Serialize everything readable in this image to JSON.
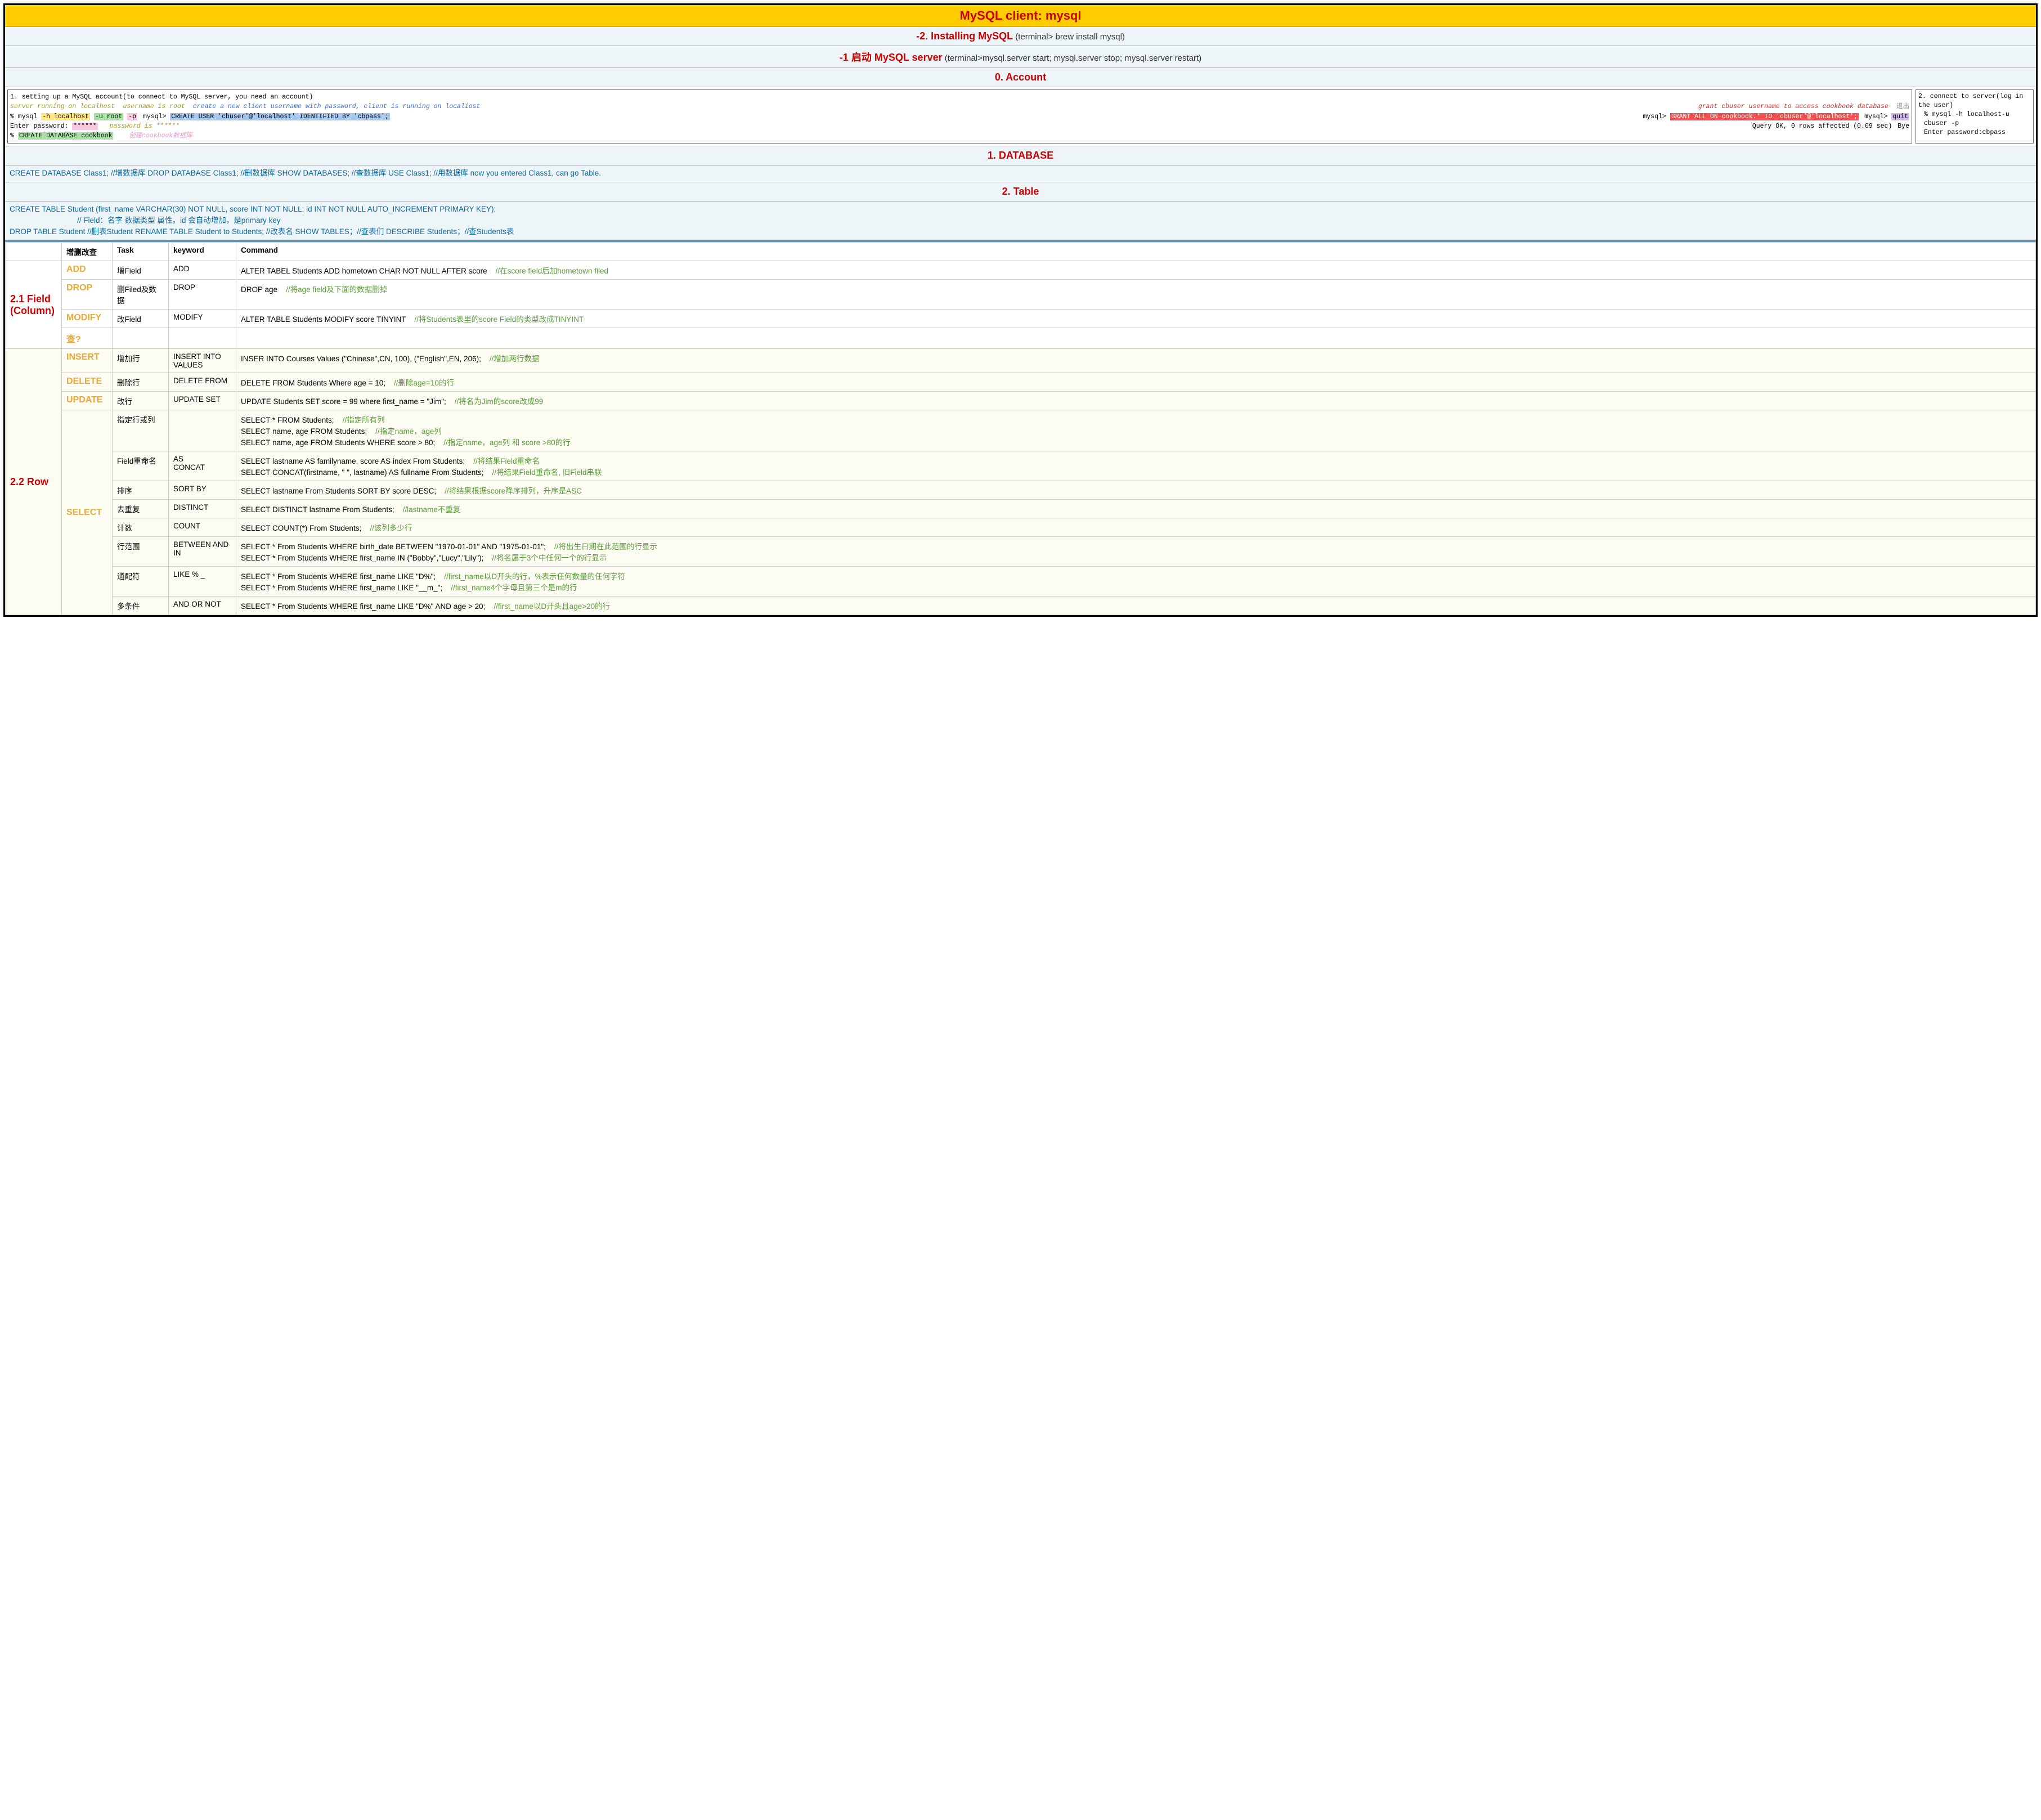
{
  "title": "MySQL client: mysql",
  "sections": {
    "install": {
      "heading": "-2. Installing MySQL",
      "sub": "(terminal> brew install mysql)"
    },
    "start": {
      "heading": "-1 启动 MySQL server",
      "sub": "(terminal>mysql.server start; mysql.server stop; mysql.server restart)"
    },
    "account": {
      "heading": "0. Account"
    },
    "database": {
      "heading": "1. DATABASE"
    },
    "table": {
      "heading": "2. Table"
    }
  },
  "account_left": {
    "l1": "1. setting up a MySQL account(to connect to MySQL server, you need an account)",
    "olive1": "server running on localhost",
    "olive2": "username is root",
    "blue_i": "create a new client username with password,  client is running on localiost",
    "red_i": "grant cbuser username to access cookbook database",
    "exit": "退出",
    "p_mysql": "% mysql ",
    "hl_host": "-h localhost",
    "hl_user": "-u root",
    "hl_p": "-p",
    "mysqlp": "mysql> ",
    "create_user": "CREATE USER 'cbuser'@'localhost' IDENTIFIED BY 'cbpass';",
    "grant": "GRANT ALL ON cookbook.* TO 'cbuser'@'localhost';",
    "quit": "quit",
    "enter_pw": "Enter password: ",
    "stars": "******",
    "pw_is": "password is ",
    "query_ok": "Query OK, 0 rows affected (0.09 sec)",
    "bye": "Bye",
    "create_db_p": "% ",
    "create_db": "CREATE DATABASE cookbook",
    "create_db_note": "创建cookbook数据库"
  },
  "account_right": {
    "l1": "2. connect to server(log in the user)",
    "l2": "% mysql -h localhost-u cbuser -p",
    "l3": "Enter password:cbpass"
  },
  "database_block": "CREATE DATABASE Class1; //增数据库  DROP DATABASE Class1; //删数据库 SHOW DATABASES; //查数据库   USE Class1; //用数据库 now you entered Class1, can go Table.",
  "table_block": {
    "l1": "CREATE TABLE Student (first_name VARCHAR(30) NOT NULL,  score INT NOT NULL,  id INT NOT NULL AUTO_INCREMENT PRIMARY KEY);",
    "l2": "//     Field：名字 数据类型          属性。id 会自动增加，是primary key",
    "l3": "DROP TABLE Student  //删表Student RENAME TABLE Student to Students;  //改表名 SHOW TABLES；//查表们  DESCRIBE Students；//查Students表"
  },
  "columns": [
    "",
    "增删改查",
    "Task",
    "keyword",
    "Command"
  ],
  "field_section": {
    "title": "2.1 Field (Column)",
    "rows": [
      {
        "op": "ADD",
        "task": "增Field",
        "kw": "ADD",
        "cmd": "ALTER TABEL Students ADD hometown CHAR NOT NULL AFTER score",
        "note": "//在score field后加hometown filed"
      },
      {
        "op": "DROP",
        "task": "删Filed及数据",
        "kw": "DROP",
        "cmd": "DROP age",
        "note": "//将age field及下面的数据删掉"
      },
      {
        "op": "MODIFY",
        "task": "改Field",
        "kw": "MODIFY",
        "cmd": "ALTER TABLE Students MODIFY score TINYINT",
        "note": "//将Students表里的score Field的类型改成TINYINT"
      },
      {
        "op": "查?",
        "task": "",
        "kw": "",
        "cmd": "",
        "note": ""
      }
    ]
  },
  "row_section": {
    "title": "2.2 Row",
    "rows_simple": [
      {
        "op": "INSERT",
        "task": "增加行",
        "kw": "INSERT INTO VALUES",
        "cmd": "INSER INTO Courses Values (\"Chinese\",CN, 100), (\"English\",EN, 206);",
        "note": "//增加两行数据"
      },
      {
        "op": "DELETE",
        "task": "删除行",
        "kw": "DELETE FROM",
        "cmd": "DELETE FROM Students Where age = 10;",
        "note": "//删除age=10的行"
      },
      {
        "op": "UPDATE",
        "task": "改行",
        "kw": "UPDATE SET",
        "cmd": "UPDATE Students SET score = 99 where first_name = \"Jim\";",
        "note": "//将名为Jim的score改成99"
      }
    ],
    "select": {
      "op": "SELECT",
      "subrows": [
        {
          "task": "指定行或列",
          "kw": "",
          "lines": [
            {
              "cmd": "SELECT * FROM Students;",
              "note": "//指定所有列"
            },
            {
              "cmd": "SELECT name, age FROM Students;",
              "note": "//指定name，age列"
            },
            {
              "cmd": "SELECT name, age FROM Students WHERE score > 80;",
              "note": "//指定name，age列 和 score >80的行"
            }
          ]
        },
        {
          "task": "Field重命名",
          "kw": "AS\nCONCAT",
          "lines": [
            {
              "cmd": "SELECT lastname AS familyname, score AS index From Students;",
              "note": "//将结果Field重命名"
            },
            {
              "cmd": "SELECT CONCAT(firstname, \" \", lastname) AS fullname From Students;",
              "note": "//将结果Field重命名, 旧Field串联"
            }
          ]
        },
        {
          "task": "排序",
          "kw": "SORT BY",
          "lines": [
            {
              "cmd": "SELECT lastname From Students SORT BY score DESC;",
              "note": "//将结果根据score降序排列，升序是ASC"
            }
          ]
        },
        {
          "task": "去重复",
          "kw": "DISTINCT",
          "lines": [
            {
              "cmd": "SELECT DISTINCT lastname From Students;",
              "note": "//lastname不重复"
            }
          ]
        },
        {
          "task": "计数",
          "kw": "COUNT",
          "lines": [
            {
              "cmd": "SELECT COUNT(*) From Students;",
              "note": "//该列多少行"
            }
          ]
        },
        {
          "task": "行范围",
          "kw": "BETWEEN AND\nIN",
          "lines": [
            {
              "cmd": "SELECT * From Students  WHERE birth_date BETWEEN \"1970-01-01\" AND \"1975-01-01\";",
              "note": "//将出生日期在此范围的行显示"
            },
            {
              "cmd": "SELECT * From Students  WHERE first_name IN (\"Bobby\",\"Lucy\",\"Lily\");",
              "note": "//将名属于3个中任何一个的行显示"
            }
          ]
        },
        {
          "task": "通配符",
          "kw": "LIKE % _",
          "lines": [
            {
              "cmd": "SELECT * From Students  WHERE first_name LIKE \"D%\";",
              "note": "//first_name以D开头的行，%表示任何数量的任何字符"
            },
            {
              "cmd": "SELECT * From Students  WHERE first_name LIKE \"__m_\";",
              "note": "//first_name4个字母且第三个是m的行"
            }
          ]
        },
        {
          "task": "多条件",
          "kw": "AND OR NOT",
          "lines": [
            {
              "cmd": "SELECT * From Students  WHERE first_name LIKE \"D%\"  AND age > 20;",
              "note": "//first_name以D开头且age>20的行"
            }
          ]
        }
      ]
    }
  },
  "colors": {
    "header_bg": "#ffcc00",
    "red": "#cc0000",
    "blue_text": "#0b6aa2",
    "green_text": "#5a9c3a",
    "orange": "#e5a93c",
    "divider": "#3fa0d0",
    "row_bg": "#fdfcf2"
  }
}
